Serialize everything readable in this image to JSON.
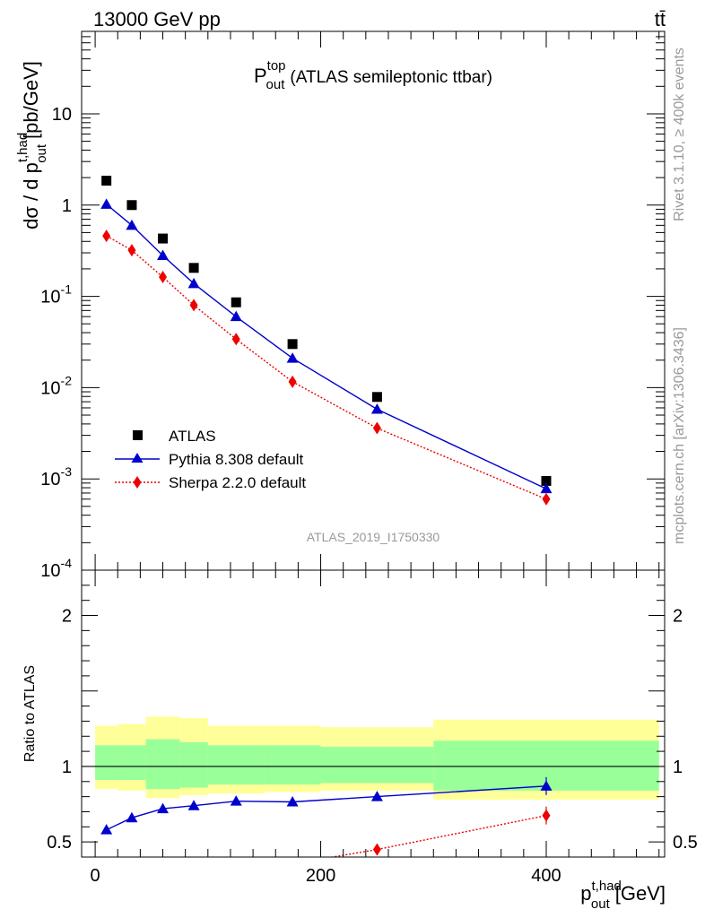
{
  "header": {
    "energy_label": "13000 GeV pp",
    "process_label": "tt̄"
  },
  "side_labels": {
    "rivet": "Rivet 3.1.10, ≥ 400k events",
    "mcplots": "mcplots.cern.ch [arXiv:1306.3436]"
  },
  "analysis_id": "ATLAS_2019_I1750330",
  "chart_data": [
    {
      "type": "scatter",
      "panel": "main",
      "title": "P_out^top (ATLAS semileptonic ttbar)",
      "title_main": "P",
      "title_sup": "top",
      "title_sub": "out",
      "title_rest": "(ATLAS semileptonic ttbar)",
      "ylabel": "dσ / d p_out^t,had [pb/GeV]",
      "ylabel_main": "dσ / d p",
      "ylabel_sup": "t,had",
      "ylabel_sub": "out",
      "ylabel_unit": "[pb/GeV]",
      "xlabel": "",
      "yscale": "log",
      "ylim": [
        0.0001,
        80
      ],
      "xlim": [
        -12,
        505
      ],
      "y_tick_labels": [
        "10",
        "1",
        "10^-1",
        "10^-2",
        "10^-3",
        "10^-4"
      ],
      "grid": false,
      "legend_position": "bottom-left",
      "series": [
        {
          "name": "ATLAS",
          "marker": "square",
          "color": "#000000",
          "x": [
            10,
            32.5,
            60,
            87.5,
            125,
            175,
            250,
            400
          ],
          "y": [
            1.85,
            1.0,
            0.43,
            0.205,
            0.086,
            0.03,
            0.0079,
            0.00095
          ]
        },
        {
          "name": "Pythia 8.308 default",
          "marker": "triangle",
          "line": "solid",
          "color": "#0000cc",
          "x": [
            10,
            32.5,
            60,
            87.5,
            125,
            175,
            250,
            400
          ],
          "y": [
            1.02,
            0.6,
            0.28,
            0.138,
            0.06,
            0.021,
            0.0058,
            0.00078
          ]
        },
        {
          "name": "Sherpa 2.2.0 default",
          "marker": "diamond",
          "line": "dotted",
          "color": "#ee0000",
          "x": [
            10,
            32.5,
            60,
            87.5,
            125,
            175,
            250,
            400
          ],
          "y": [
            0.46,
            0.32,
            0.163,
            0.08,
            0.034,
            0.0116,
            0.0036,
            0.0006
          ]
        }
      ]
    },
    {
      "type": "line",
      "panel": "ratio",
      "ylabel": "Ratio to ATLAS",
      "xlabel": "p_out^t,had [GeV]",
      "xlabel_main": "p",
      "xlabel_sup": "t,had",
      "xlabel_sub": "out",
      "xlabel_unit": "[GeV]",
      "xlim": [
        -12,
        505
      ],
      "ylim": [
        0.4,
        2.3
      ],
      "x_tick_labels": [
        "0",
        "200",
        "400"
      ],
      "y_tick_labels": [
        "0.5",
        "1",
        "2"
      ],
      "bands": {
        "edges": [
          0,
          20,
          45,
          75,
          100,
          150,
          200,
          300,
          500
        ],
        "inner_upper": [
          1.14,
          1.14,
          1.18,
          1.16,
          1.14,
          1.14,
          1.13,
          1.17
        ],
        "inner_lower": [
          0.91,
          0.91,
          0.85,
          0.86,
          0.88,
          0.88,
          0.89,
          0.84
        ],
        "outer_upper": [
          1.27,
          1.28,
          1.33,
          1.32,
          1.27,
          1.27,
          1.26,
          1.31
        ],
        "outer_lower": [
          0.85,
          0.84,
          0.79,
          0.81,
          0.82,
          0.83,
          0.84,
          0.78
        ],
        "inner_color": "#99ff99",
        "outer_color": "#ffff99"
      },
      "series": [
        {
          "name": "Pythia 8.308 default",
          "color": "#0000cc",
          "x": [
            10,
            32.5,
            60,
            87.5,
            125,
            175,
            250,
            400
          ],
          "y": [
            0.58,
            0.66,
            0.72,
            0.74,
            0.77,
            0.765,
            0.8,
            0.87
          ]
        },
        {
          "name": "Sherpa 2.2.0 default",
          "color": "#ee0000",
          "x": [
            250,
            400
          ],
          "y": [
            0.45,
            0.675
          ]
        }
      ]
    }
  ]
}
